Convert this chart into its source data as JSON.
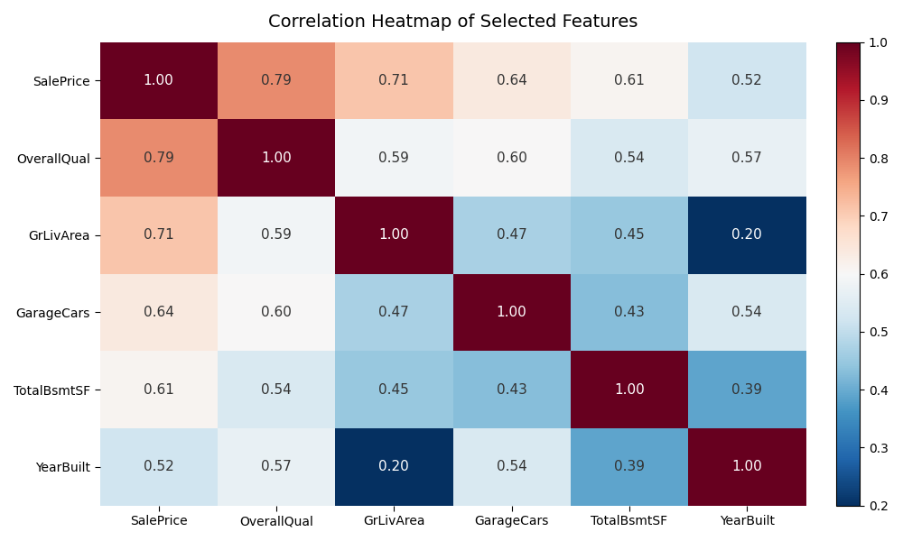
{
  "title": "Correlation Heatmap of Selected Features",
  "features": [
    "SalePrice",
    "OverallQual",
    "GrLivArea",
    "GarageCars",
    "TotalBsmtSF",
    "YearBuilt"
  ],
  "matrix": [
    [
      1.0,
      0.79,
      0.71,
      0.64,
      0.61,
      0.52
    ],
    [
      0.79,
      1.0,
      0.59,
      0.6,
      0.54,
      0.57
    ],
    [
      0.71,
      0.59,
      1.0,
      0.47,
      0.45,
      0.2
    ],
    [
      0.64,
      0.6,
      0.47,
      1.0,
      0.43,
      0.54
    ],
    [
      0.61,
      0.54,
      0.45,
      0.43,
      1.0,
      0.39
    ],
    [
      0.52,
      0.57,
      0.2,
      0.54,
      0.39,
      1.0
    ]
  ],
  "vmin": 0.2,
  "vmax": 1.0,
  "cmap": "RdBu_r",
  "figsize": [
    10,
    6
  ],
  "dpi": 100,
  "title_fontsize": 14,
  "tick_fontsize": 10,
  "annot_fontsize": 11,
  "colorbar_ticks": [
    0.2,
    0.3,
    0.4,
    0.5,
    0.6,
    0.7,
    0.8,
    0.9,
    1.0
  ]
}
